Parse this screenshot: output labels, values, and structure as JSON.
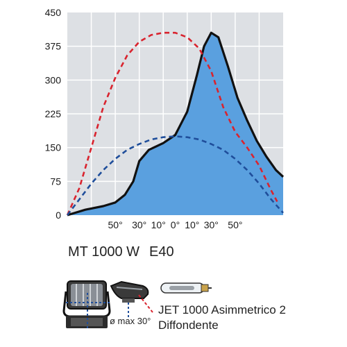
{
  "chart_data": {
    "type": "line",
    "title": "",
    "xlabel": "",
    "ylabel": "",
    "ylim": [
      0,
      450
    ],
    "y_ticks": [
      "450",
      "375",
      "300",
      "225",
      "150",
      "75",
      "0"
    ],
    "x_ticks": [
      "50°",
      "30°",
      "10°",
      "0°",
      "10°",
      "30°",
      "50°"
    ],
    "grid": true,
    "legend": "none",
    "series": [
      {
        "style": "solid-filled",
        "color": "#111111",
        "fill": "#5aa0df",
        "x": [
          -90,
          -75,
          -60,
          -50,
          -42,
          -35,
          -30,
          -22,
          -10,
          0,
          10,
          18,
          24,
          30,
          36,
          44,
          52,
          60,
          68,
          76,
          84,
          90
        ],
        "values": [
          0,
          12,
          20,
          28,
          45,
          75,
          120,
          145,
          160,
          178,
          230,
          310,
          375,
          405,
          395,
          330,
          260,
          210,
          165,
          130,
          100,
          85
        ]
      },
      {
        "style": "dashed",
        "color": "#d9232e",
        "x": [
          -90,
          -80,
          -70,
          -60,
          -50,
          -40,
          -30,
          -20,
          -10,
          0,
          10,
          20,
          30,
          40,
          50,
          60,
          70,
          80,
          85
        ],
        "values": [
          0,
          60,
          150,
          240,
          305,
          355,
          385,
          400,
          405,
          405,
          395,
          370,
          320,
          240,
          185,
          150,
          110,
          55,
          30
        ]
      },
      {
        "style": "dashed",
        "color": "#1f4e9b",
        "x": [
          -90,
          -80,
          -70,
          -60,
          -50,
          -40,
          -30,
          -20,
          -10,
          0,
          10,
          20,
          30,
          40,
          50,
          60,
          70,
          80,
          90
        ],
        "values": [
          0,
          35,
          70,
          100,
          125,
          145,
          158,
          168,
          173,
          175,
          173,
          168,
          158,
          145,
          125,
          100,
          70,
          35,
          5
        ]
      }
    ]
  },
  "model_line": {
    "name": "MT 1000 W",
    "socket": "E40"
  },
  "lamp": {
    "line1": "JET 1000 Asimmetrico 2",
    "line2": "Diffondente"
  },
  "tilt_note": "ø max 30°",
  "icons": {
    "fixture_front": "floodlight-front-icon",
    "fixture_side": "floodlight-side-icon",
    "lamp": "metal-halide-lamp-icon"
  }
}
